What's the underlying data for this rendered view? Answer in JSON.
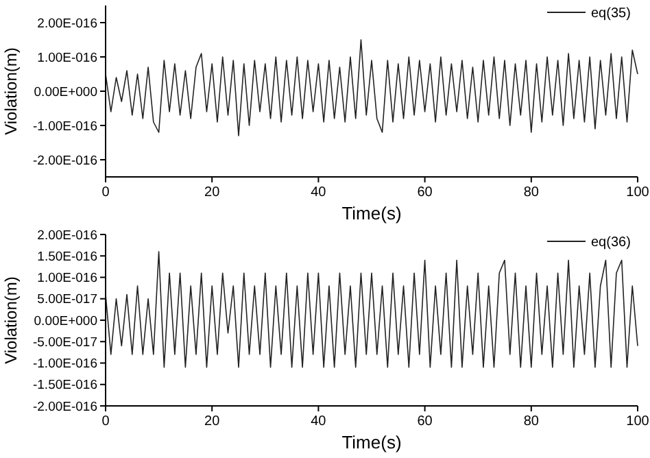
{
  "chart_data": [
    {
      "type": "line",
      "xlabel": "Time(s)",
      "ylabel": "Violation(m)",
      "legend": "top right",
      "x": [
        0,
        1,
        2,
        3,
        4,
        5,
        6,
        7,
        8,
        9,
        10,
        11,
        12,
        13,
        14,
        15,
        16,
        17,
        18,
        19,
        20,
        21,
        22,
        23,
        24,
        25,
        26,
        27,
        28,
        29,
        30,
        31,
        32,
        33,
        34,
        35,
        36,
        37,
        38,
        39,
        40,
        41,
        42,
        43,
        44,
        45,
        46,
        47,
        48,
        49,
        50,
        51,
        52,
        53,
        54,
        55,
        56,
        57,
        58,
        59,
        60,
        61,
        62,
        63,
        64,
        65,
        66,
        67,
        68,
        69,
        70,
        71,
        72,
        73,
        74,
        75,
        76,
        77,
        78,
        79,
        80,
        81,
        82,
        83,
        84,
        85,
        86,
        87,
        88,
        89,
        90,
        91,
        92,
        93,
        94,
        95,
        96,
        97,
        98,
        99,
        100
      ],
      "series": [
        {
          "name": "eq(35)",
          "color": "#222222",
          "values": [
            5e-17,
            -6e-17,
            4e-17,
            -3e-17,
            6e-17,
            -7e-17,
            5e-17,
            -8e-17,
            7e-17,
            -9e-17,
            -1.2e-16,
            9e-17,
            -6e-17,
            8e-17,
            -7e-17,
            6e-17,
            -8e-17,
            7e-17,
            1.1e-16,
            -6e-17,
            8e-17,
            -9e-17,
            1e-16,
            -7e-17,
            9e-17,
            -1.3e-16,
            8e-17,
            -1e-16,
            9e-17,
            -6e-17,
            8e-17,
            -8e-17,
            1e-16,
            -9e-17,
            9e-17,
            -7e-17,
            1e-16,
            -8e-17,
            9e-17,
            -6e-17,
            8e-17,
            -9e-17,
            9e-17,
            -8e-17,
            7e-17,
            -9e-17,
            1e-16,
            -8e-17,
            1.5e-16,
            -7e-17,
            9e-17,
            -8e-17,
            -1.2e-16,
            9e-17,
            -9e-17,
            8e-17,
            -8e-17,
            1e-16,
            -7e-17,
            9e-17,
            -6e-17,
            8e-17,
            -9e-17,
            1e-16,
            -7e-17,
            8e-17,
            -6e-17,
            9e-17,
            -8e-17,
            7e-17,
            -9e-17,
            9e-17,
            -7e-17,
            1e-16,
            -8e-17,
            9e-17,
            -1e-16,
            8e-17,
            -7e-17,
            9e-17,
            -1.2e-16,
            8e-17,
            -9e-17,
            1e-16,
            -7e-17,
            9e-17,
            -1e-16,
            1.1e-16,
            -8e-17,
            9e-17,
            -9e-17,
            1e-16,
            -1.1e-16,
            9e-17,
            -7e-17,
            1.1e-16,
            -8e-17,
            1e-16,
            -9e-17,
            1.2e-16,
            5e-17
          ]
        }
      ],
      "xlim": [
        0,
        100
      ],
      "xticks": [
        0,
        20,
        40,
        60,
        80,
        100
      ],
      "ylim": [
        -2.5e-16,
        2.5e-16
      ],
      "yticks": [
        {
          "value": -2e-16,
          "label": "-2.00E-016"
        },
        {
          "value": -1e-16,
          "label": "-1.00E-016"
        },
        {
          "value": 0,
          "label": "0.00E+000"
        },
        {
          "value": 1e-16,
          "label": "1.00E-016"
        },
        {
          "value": 2e-16,
          "label": "2.00E-016"
        }
      ]
    },
    {
      "type": "line",
      "xlabel": "Time(s)",
      "ylabel": "Violation(m)",
      "legend": "top right",
      "x": [
        0,
        1,
        2,
        3,
        4,
        5,
        6,
        7,
        8,
        9,
        10,
        11,
        12,
        13,
        14,
        15,
        16,
        17,
        18,
        19,
        20,
        21,
        22,
        23,
        24,
        25,
        26,
        27,
        28,
        29,
        30,
        31,
        32,
        33,
        34,
        35,
        36,
        37,
        38,
        39,
        40,
        41,
        42,
        43,
        44,
        45,
        46,
        47,
        48,
        49,
        50,
        51,
        52,
        53,
        54,
        55,
        56,
        57,
        58,
        59,
        60,
        61,
        62,
        63,
        64,
        65,
        66,
        67,
        68,
        69,
        70,
        71,
        72,
        73,
        74,
        75,
        76,
        77,
        78,
        79,
        80,
        81,
        82,
        83,
        84,
        85,
        86,
        87,
        88,
        89,
        90,
        91,
        92,
        93,
        94,
        95,
        96,
        97,
        98,
        99,
        100
      ],
      "series": [
        {
          "name": "eq(36)",
          "color": "#222222",
          "values": [
            6e-17,
            -8e-17,
            5e-17,
            -6e-17,
            6e-17,
            -8e-17,
            8e-17,
            -8e-17,
            5e-17,
            -8e-17,
            1.6e-16,
            -1.1e-16,
            1.1e-16,
            -8e-17,
            1.1e-16,
            -1.1e-16,
            8e-17,
            -8e-17,
            1.1e-16,
            -1.1e-16,
            8e-17,
            -8e-17,
            1.1e-16,
            -3e-17,
            8e-17,
            -1.1e-16,
            1.1e-16,
            -8e-17,
            8e-17,
            -8e-17,
            1.1e-16,
            -1.1e-16,
            8e-17,
            -8e-17,
            1.1e-16,
            -1.1e-16,
            8e-17,
            -1.1e-16,
            1.1e-16,
            -8e-17,
            1.1e-16,
            -1.1e-16,
            8e-17,
            -1.1e-16,
            1.1e-16,
            -8e-17,
            8e-17,
            -1.1e-16,
            1.1e-16,
            -8e-17,
            1.1e-16,
            -8e-17,
            8e-17,
            -1.1e-16,
            1.1e-16,
            -8e-17,
            8e-17,
            -1.1e-16,
            1.1e-16,
            -8e-17,
            1.4e-16,
            -1.1e-16,
            8e-17,
            -8e-17,
            1.1e-16,
            -1.1e-16,
            1.4e-16,
            -1.1e-16,
            8e-17,
            -8e-17,
            1.1e-16,
            -1.1e-16,
            8e-17,
            -1.1e-16,
            1.1e-16,
            1.4e-16,
            -8e-17,
            1.1e-16,
            -1.1e-16,
            8e-17,
            -1.1e-16,
            1.1e-16,
            -8e-17,
            8e-17,
            -1.1e-16,
            1.1e-16,
            -8e-17,
            1.4e-16,
            -1.1e-16,
            8e-17,
            -8e-17,
            1.1e-16,
            -1.1e-16,
            8e-17,
            1.4e-16,
            -1.1e-16,
            1.1e-16,
            1.4e-16,
            -1.1e-16,
            8e-17,
            -6e-17
          ]
        }
      ],
      "xlim": [
        0,
        100
      ],
      "xticks": [
        0,
        20,
        40,
        60,
        80,
        100
      ],
      "ylim": [
        -2e-16,
        2e-16
      ],
      "yticks": [
        {
          "value": -2e-16,
          "label": "-2.00E-016"
        },
        {
          "value": -1.5e-16,
          "label": "-1.50E-016"
        },
        {
          "value": -1e-16,
          "label": "-1.00E-016"
        },
        {
          "value": -5e-17,
          "label": "-5.00E-017"
        },
        {
          "value": 0,
          "label": "0.00E+000"
        },
        {
          "value": 5e-17,
          "label": "5.00E-017"
        },
        {
          "value": 1e-16,
          "label": "1.00E-016"
        },
        {
          "value": 1.5e-16,
          "label": "1.50E-016"
        },
        {
          "value": 2e-16,
          "label": "2.00E-016"
        }
      ]
    }
  ]
}
